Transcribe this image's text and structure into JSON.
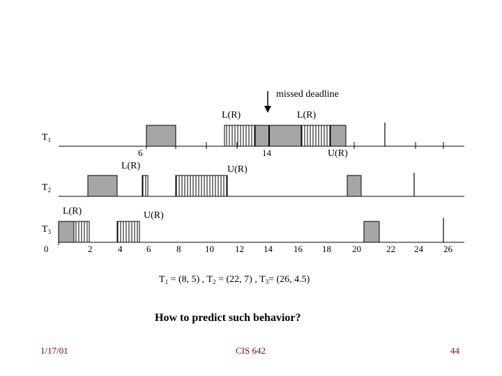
{
  "annotation": {
    "missed_deadline": "missed deadline"
  },
  "tasks": {
    "t1": {
      "label": "T",
      "sub": "1"
    },
    "t2": {
      "label": "T",
      "sub": "2"
    },
    "t3": {
      "label": "T",
      "sub": "3"
    }
  },
  "lock_labels": {
    "t1_lock_a": "L(R)",
    "t1_lock_b": "L(R)",
    "t1_unlock": "U(R)",
    "t2_lock": "L(R)",
    "t2_unlock": "U(R)",
    "t3_lock": "L(R)",
    "t3_unlock": "U(R)"
  },
  "markers": {
    "t1_6": "6",
    "t1_14": "14"
  },
  "axis": {
    "ticks": [
      "0",
      "2",
      "4",
      "6",
      "8",
      "10",
      "12",
      "14",
      "16",
      "18",
      "20",
      "22",
      "24",
      "26"
    ]
  },
  "params": {
    "t1": "T",
    "t1_sub": "1",
    "t1_val": " = (8, 5) , ",
    "t2": "T",
    "t2_sub": "2",
    "t2_val": " = (22, 7) , ",
    "t3": "T",
    "t3_sub": "3",
    "t3_val": "= (26, 4.5)"
  },
  "question": "How to predict such behavior?",
  "footer": {
    "date": "1/17/01",
    "course": "CIS 642",
    "page": "44"
  },
  "colors": {
    "exec_gray": "#a6a6a6",
    "footer_red": "#8b0000"
  }
}
